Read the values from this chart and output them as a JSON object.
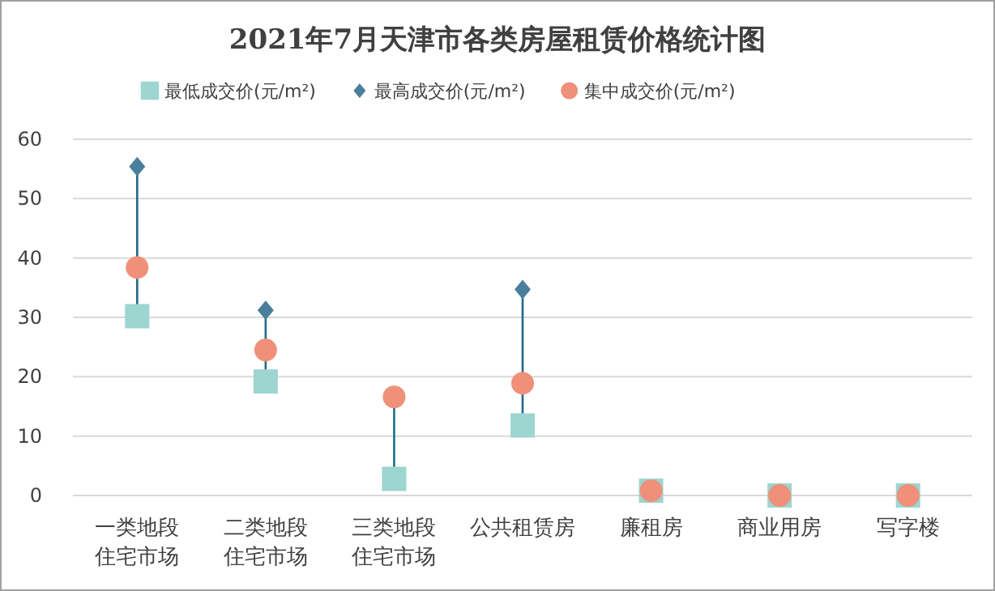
{
  "chart_data": {
    "type": "scatter",
    "title": "2021年7月天津市各类房屋租赁价格统计图",
    "categories": [
      "一类地段住宅市场",
      "二类地段住宅市场",
      "三类地段住宅市场",
      "公共租赁房",
      "廉租房",
      "商业用房",
      "写字楼"
    ],
    "series": [
      {
        "name": "最低成交价(元/m²)",
        "color": "#9dd5d0",
        "marker": "square",
        "values": [
          30.2,
          19.2,
          2.8,
          11.8,
          0.8,
          0,
          0
        ]
      },
      {
        "name": "最高成交价(元/m²)",
        "color": "#4a7f9c",
        "marker": "diamond",
        "values": [
          55.4,
          31.2,
          null,
          34.7,
          null,
          null,
          null
        ]
      },
      {
        "name": "集中成交价(元/m²)",
        "color": "#f0907a",
        "marker": "circle",
        "values": [
          38.4,
          24.5,
          16.6,
          18.9,
          0.8,
          0,
          0
        ]
      }
    ],
    "ylim": [
      0,
      60
    ],
    "yticks": [
      0,
      10,
      20,
      30,
      40,
      50,
      60
    ],
    "grid": "y",
    "legend": "top"
  }
}
